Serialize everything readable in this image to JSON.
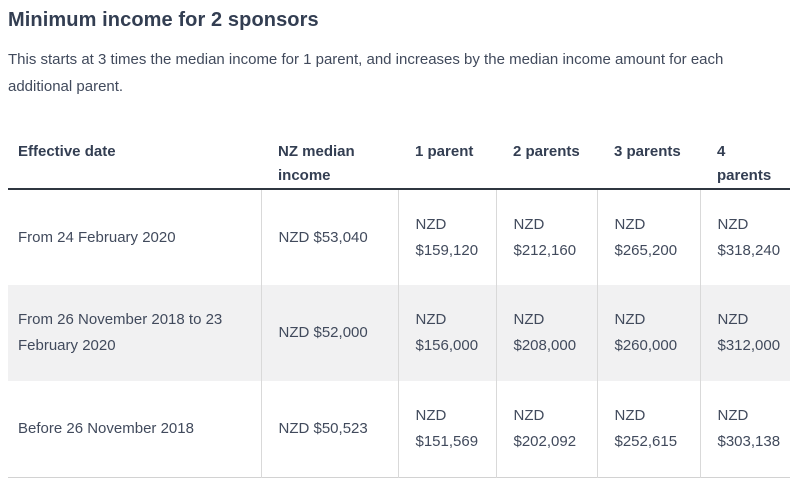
{
  "page": {
    "title": "Minimum income for 2 sponsors",
    "description": "This starts at 3 times the median income for 1 parent, and increases by the median income amount for each additional parent."
  },
  "colors": {
    "heading_text": "#333e52",
    "body_text": "#414a5c",
    "header_border": "#2f3640",
    "cell_divider": "#d9d9d9",
    "table_bottom_border": "#d2d2d2",
    "striped_row_background": "#f1f1f2"
  },
  "table": {
    "columns": [
      "Effective date",
      "NZ median income",
      "1 parent",
      "2 parents",
      "3 parents",
      "4 parents"
    ],
    "rows": [
      [
        "From 24 February 2020",
        "NZD $53,040",
        "NZD $159,120",
        "NZD $212,160",
        "NZD $265,200",
        "NZD $318,240"
      ],
      [
        "From 26 November 2018 to 23 February 2020",
        "NZD $52,000",
        "NZD $156,000",
        "NZD $208,000",
        "NZD $260,000",
        "NZD $312,000"
      ],
      [
        "Before 26 November 2018",
        "NZD $50,523",
        "NZD $151,569",
        "NZD $202,092",
        "NZD $252,615",
        "NZD $303,138"
      ]
    ]
  }
}
